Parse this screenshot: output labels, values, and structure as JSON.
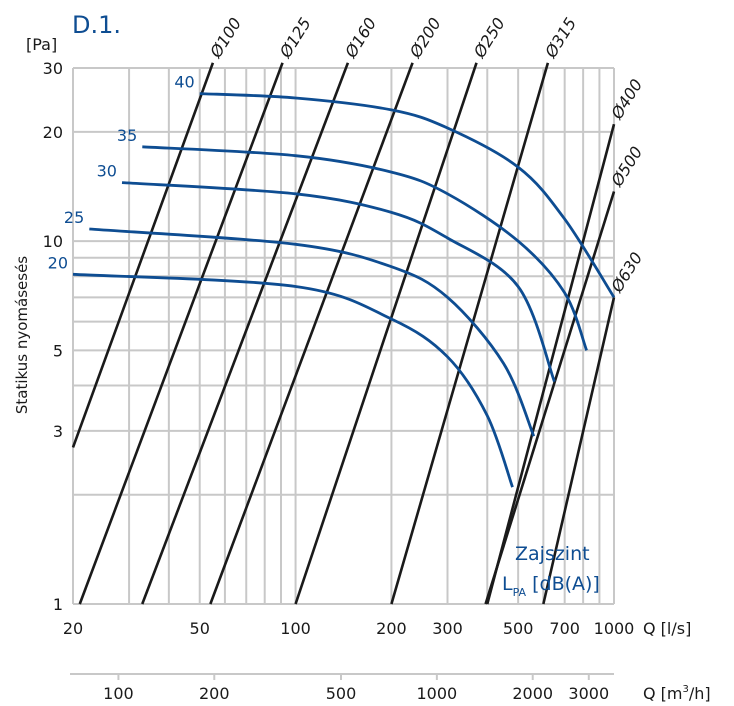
{
  "title": "D.1.",
  "colors": {
    "curve": "#0e4d92",
    "duct": "#1a1a1a",
    "grid": "#c8c8c8",
    "title": "#0e4d92"
  },
  "chart_data": {
    "type": "line",
    "ylabel": "Statikus nyomásesés",
    "yunit": "[Pa]",
    "xlabel": "Q [l/s]",
    "x2label_prefix": "Q [m",
    "x2label_sup": "3",
    "x2label_suffix": "/h]",
    "xscale": "log",
    "yscale": "log",
    "xlim": [
      20,
      1000
    ],
    "ylim": [
      1,
      30
    ],
    "grid": true,
    "xticks": [
      20,
      50,
      100,
      200,
      300,
      500,
      700,
      1000
    ],
    "xtick_labels": [
      "20",
      "50",
      "100",
      "200",
      "300",
      "500",
      "700",
      "1000"
    ],
    "xticks_m3h": [
      100,
      200,
      500,
      1000,
      2000,
      3000
    ],
    "xtick_m3h_labels": [
      "100",
      "200",
      "500",
      "1000",
      "2000",
      "3000"
    ],
    "yticks": [
      1,
      3,
      5,
      10,
      20,
      30
    ],
    "ytick_labels": [
      "1",
      "3",
      "5",
      "10",
      "20",
      "30"
    ],
    "ducts": [
      {
        "label": "Ø100",
        "points": [
          [
            20,
            2.7
          ],
          [
            55,
            31
          ]
        ]
      },
      {
        "label": "Ø125",
        "points": [
          [
            21,
            1
          ],
          [
            91,
            31
          ]
        ]
      },
      {
        "label": "Ø160",
        "points": [
          [
            33,
            1
          ],
          [
            146,
            31
          ]
        ]
      },
      {
        "label": "Ø200",
        "points": [
          [
            54,
            1
          ],
          [
            233,
            31
          ]
        ]
      },
      {
        "label": "Ø250",
        "points": [
          [
            100,
            1
          ],
          [
            370,
            31
          ]
        ]
      },
      {
        "label": "Ø315",
        "points": [
          [
            200,
            1
          ],
          [
            620,
            31
          ]
        ]
      },
      {
        "label": "Ø400",
        "points": [
          [
            400,
            1
          ],
          [
            1000,
            21
          ]
        ]
      },
      {
        "label": "Ø500",
        "points": [
          [
            395,
            1
          ],
          [
            1000,
            13.7
          ]
        ]
      },
      {
        "label": "Ø630",
        "points": [
          [
            600,
            1
          ],
          [
            1000,
            7
          ]
        ]
      }
    ],
    "series": [
      {
        "name": "40",
        "points": [
          [
            50,
            25.5
          ],
          [
            100,
            24.8
          ],
          [
            200,
            23
          ],
          [
            300,
            20.5
          ],
          [
            500,
            16
          ],
          [
            700,
            11.5
          ],
          [
            1000,
            7
          ]
        ]
      },
      {
        "name": "35",
        "points": [
          [
            33,
            18.2
          ],
          [
            100,
            17.2
          ],
          [
            200,
            15.5
          ],
          [
            300,
            13.5
          ],
          [
            500,
            10
          ],
          [
            700,
            7.2
          ],
          [
            820,
            5
          ]
        ]
      },
      {
        "name": "30",
        "points": [
          [
            28.5,
            14.5
          ],
          [
            100,
            13.5
          ],
          [
            200,
            12
          ],
          [
            300,
            10.2
          ],
          [
            500,
            7.5
          ],
          [
            650,
            4.1
          ]
        ]
      },
      {
        "name": "25",
        "points": [
          [
            22.5,
            10.8
          ],
          [
            100,
            9.8
          ],
          [
            200,
            8.5
          ],
          [
            300,
            7
          ],
          [
            450,
            4.6
          ],
          [
            560,
            2.9
          ]
        ]
      },
      {
        "name": "20",
        "points": [
          [
            20,
            8.1
          ],
          [
            100,
            7.5
          ],
          [
            200,
            6.1
          ],
          [
            300,
            4.8
          ],
          [
            400,
            3.3
          ],
          [
            480,
            2.1
          ]
        ]
      }
    ],
    "legend_line1": "Zajszint",
    "legend_line2_prefix": "L",
    "legend_line2_sub": "PA",
    "legend_line2_suffix": " [dB(A)]"
  }
}
